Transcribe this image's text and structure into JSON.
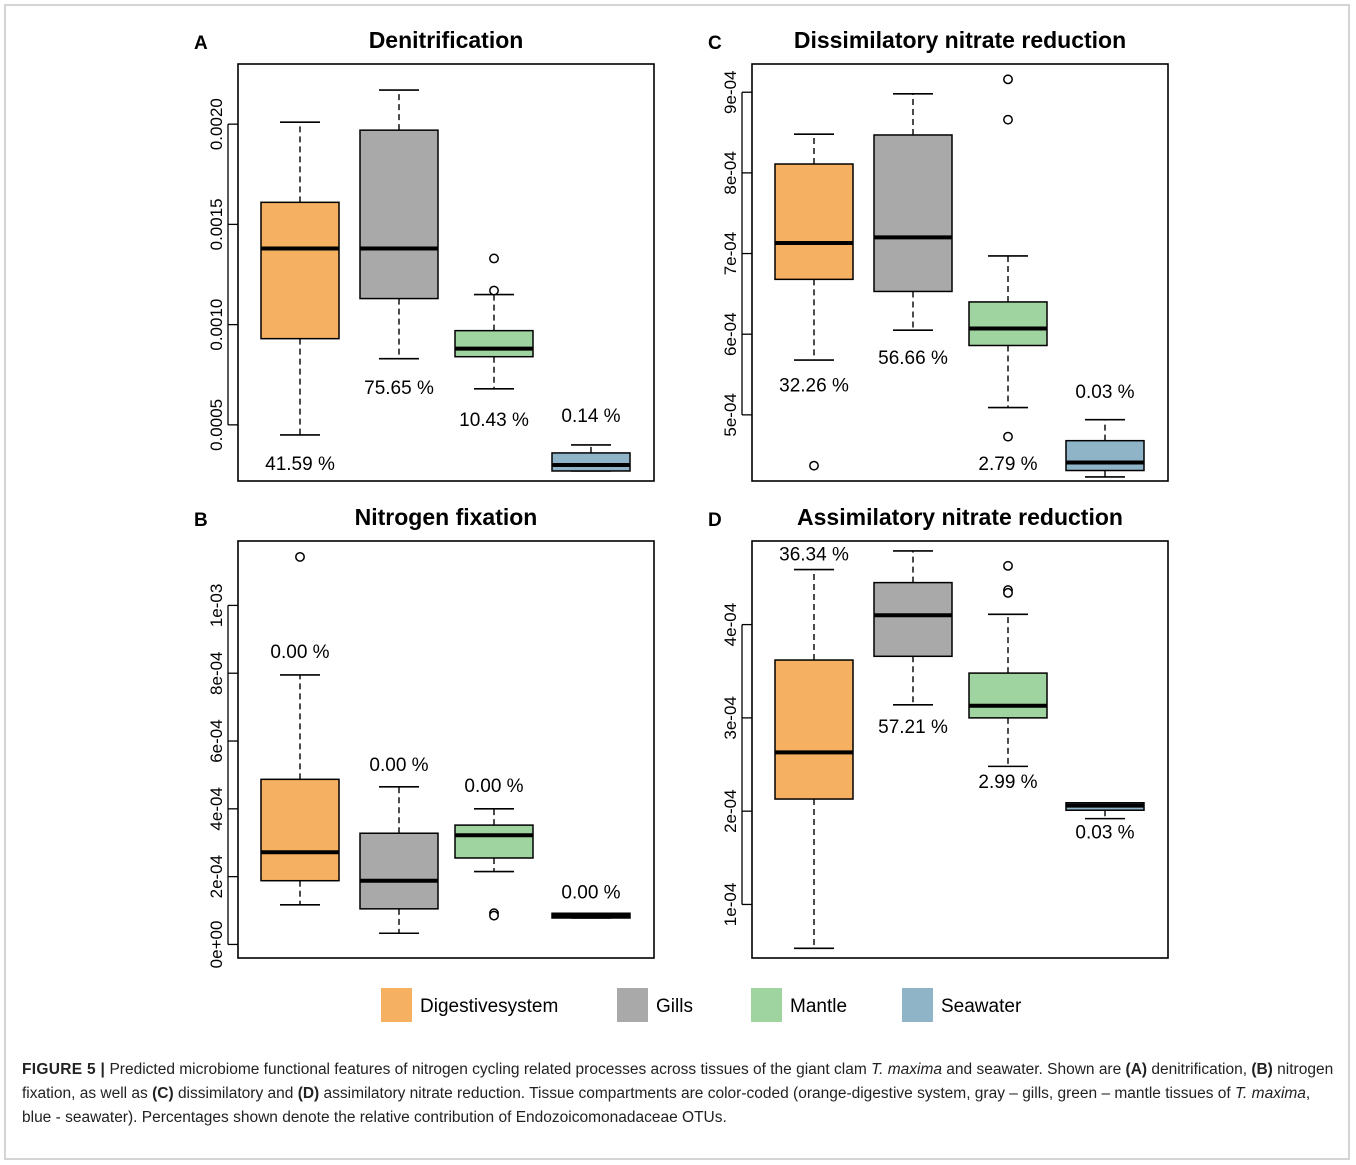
{
  "figure": {
    "caption": {
      "figure_label": "FIGURE 5 |",
      "t1": "Predicted microbiome functional features of nitrogen cycling related processes across tissues of the giant clam",
      "species1": "T. maxima",
      "t2": "and seawater. Shown are",
      "refA": "(A)",
      "t3": "denitrification,",
      "refB": "(B)",
      "t4": "nitrogen fixation, as well as",
      "refC": "(C)",
      "t5": "dissimilatory and",
      "refD": "(D)",
      "t6": "assimilatory nitrate reduction. Tissue compartments are color-coded (orange-digestive system, gray – gills, green – mantle tissues of",
      "species2": "T. maxima",
      "t7": ", blue - seawater). Percentages shown denote the relative contribution of Endozoicomonadaceae OTUs."
    },
    "legend": [
      {
        "label": "Digestivesystem",
        "color": "#F5B061"
      },
      {
        "label": "Gills",
        "color": "#A9A9A9"
      },
      {
        "label": "Mantle",
        "color": "#9FD39F"
      },
      {
        "label": "Seawater",
        "color": "#8FB4C8"
      }
    ]
  },
  "chart_data": [
    {
      "type": "boxplot",
      "panel": "A",
      "title": "Denitrification",
      "ylim": [
        0.00022,
        0.0023
      ],
      "yticks": [
        {
          "value": 0.0005,
          "label": "0.0005"
        },
        {
          "value": 0.001,
          "label": "0.0010"
        },
        {
          "value": 0.0015,
          "label": "0.0015"
        },
        {
          "value": 0.002,
          "label": "0.0020"
        }
      ],
      "boxes": [
        {
          "group": "Digestivesystem",
          "color": "#F5B061",
          "whisker_low": 0.00045,
          "q1": 0.00093,
          "median": 0.00138,
          "q3": 0.00161,
          "whisker_high": 0.00201,
          "outliers": [],
          "pct_label": "41.59 %",
          "pct_y": 0.0003
        },
        {
          "group": "Gills",
          "color": "#A9A9A9",
          "whisker_low": 0.00083,
          "q1": 0.00113,
          "median": 0.00138,
          "q3": 0.00197,
          "whisker_high": 0.00217,
          "outliers": [],
          "pct_label": "75.65 %",
          "pct_y": 0.00068
        },
        {
          "group": "Mantle",
          "color": "#9FD39F",
          "whisker_low": 0.00068,
          "q1": 0.00084,
          "median": 0.00088,
          "q3": 0.00097,
          "whisker_high": 0.00115,
          "outliers": [
            0.00133,
            0.00117
          ],
          "pct_label": "10.43 %",
          "pct_y": 0.00052
        },
        {
          "group": "Seawater",
          "color": "#8FB4C8",
          "whisker_low": 0.00027,
          "q1": 0.00027,
          "median": 0.0003,
          "q3": 0.00036,
          "whisker_high": 0.0004,
          "outliers": [],
          "pct_label": "0.14 %",
          "pct_y": 0.00054
        }
      ]
    },
    {
      "type": "boxplot",
      "panel": "C",
      "title": "Dissimilatory nitrate reduction",
      "ylim": [
        0.000418,
        0.000935
      ],
      "yticks": [
        {
          "value": 0.0005,
          "label": "5e-04"
        },
        {
          "value": 0.0006,
          "label": "6e-04"
        },
        {
          "value": 0.0007,
          "label": "7e-04"
        },
        {
          "value": 0.0008,
          "label": "8e-04"
        },
        {
          "value": 0.0009,
          "label": "9e-04"
        }
      ],
      "boxes": [
        {
          "group": "Digestivesystem",
          "color": "#F5B061",
          "whisker_low": 0.000568,
          "q1": 0.000668,
          "median": 0.000713,
          "q3": 0.000811,
          "whisker_high": 0.000848,
          "outliers": [
            0.000437
          ],
          "pct_label": "32.26 %",
          "pct_y": 0.000535
        },
        {
          "group": "Gills",
          "color": "#A9A9A9",
          "whisker_low": 0.000605,
          "q1": 0.000653,
          "median": 0.00072,
          "q3": 0.000847,
          "whisker_high": 0.000898,
          "outliers": [],
          "pct_label": "56.66 %",
          "pct_y": 0.000569
        },
        {
          "group": "Mantle",
          "color": "#9FD39F",
          "whisker_low": 0.000509,
          "q1": 0.000586,
          "median": 0.000607,
          "q3": 0.00064,
          "whisker_high": 0.000697,
          "outliers": [
            0.000916,
            0.000866,
            0.000473
          ],
          "pct_label": "2.79 %",
          "pct_y": 0.000438
        },
        {
          "group": "Seawater",
          "color": "#8FB4C8",
          "whisker_low": 0.000423,
          "q1": 0.000431,
          "median": 0.000441,
          "q3": 0.000468,
          "whisker_high": 0.000494,
          "outliers": [],
          "pct_label": "0.03 %",
          "pct_y": 0.000527
        }
      ]
    },
    {
      "type": "boxplot",
      "panel": "B",
      "title": "Nitrogen fixation",
      "ylim": [
        -4e-05,
        0.00119
      ],
      "yticks": [
        {
          "value": 0,
          "label": "0e+00"
        },
        {
          "value": 0.0002,
          "label": "2e-04"
        },
        {
          "value": 0.0004,
          "label": "4e-04"
        },
        {
          "value": 0.0006,
          "label": "6e-04"
        },
        {
          "value": 0.0008,
          "label": "8e-04"
        },
        {
          "value": 0.001,
          "label": "1e-03"
        }
      ],
      "boxes": [
        {
          "group": "Digestivesystem",
          "color": "#F5B061",
          "whisker_low": 0.000117,
          "q1": 0.000188,
          "median": 0.000272,
          "q3": 0.000487,
          "whisker_high": 0.000795,
          "outliers": [
            0.001143
          ],
          "pct_label": "0.00 %",
          "pct_y": 0.00086
        },
        {
          "group": "Gills",
          "color": "#A9A9A9",
          "whisker_low": 3.3e-05,
          "q1": 0.000105,
          "median": 0.000188,
          "q3": 0.000328,
          "whisker_high": 0.000465,
          "outliers": [],
          "pct_label": "0.00 %",
          "pct_y": 0.000527
        },
        {
          "group": "Mantle",
          "color": "#9FD39F",
          "whisker_low": 0.000215,
          "q1": 0.000255,
          "median": 0.000322,
          "q3": 0.000352,
          "whisker_high": 0.0004,
          "outliers": [
            9.2e-05,
            8.5e-05
          ],
          "pct_label": "0.00 %",
          "pct_y": 0.000465
        },
        {
          "group": "Seawater",
          "color": "#8FB4C8",
          "whisker_low": 7.8e-05,
          "q1": 7.8e-05,
          "median": 8.5e-05,
          "q3": 9.2e-05,
          "whisker_high": 9.2e-05,
          "outliers": [],
          "pct_label": "0.00 %",
          "pct_y": 0.00015
        }
      ]
    },
    {
      "type": "boxplot",
      "panel": "D",
      "title": "Assimilatory nitrate reduction",
      "ylim": [
        4.26e-05,
        0.0004896
      ],
      "yticks": [
        {
          "value": 0.0001,
          "label": "1e-04"
        },
        {
          "value": 0.0002,
          "label": "2e-04"
        },
        {
          "value": 0.0003,
          "label": "3e-04"
        },
        {
          "value": 0.0004,
          "label": "4e-04"
        }
      ],
      "boxes": [
        {
          "group": "Digestivesystem",
          "color": "#F5B061",
          "whisker_low": 5.3e-05,
          "q1": 0.000213,
          "median": 0.000263,
          "q3": 0.000362,
          "whisker_high": 0.000459,
          "outliers": [],
          "pct_label": "36.34 %",
          "pct_y": 0.000474
        },
        {
          "group": "Gills",
          "color": "#A9A9A9",
          "whisker_low": 0.000314,
          "q1": 0.000366,
          "median": 0.00041,
          "q3": 0.000445,
          "whisker_high": 0.000479,
          "outliers": [],
          "pct_label": "57.21 %",
          "pct_y": 0.000289
        },
        {
          "group": "Mantle",
          "color": "#9FD39F",
          "whisker_low": 0.000248,
          "q1": 0.0003,
          "median": 0.000313,
          "q3": 0.000348,
          "whisker_high": 0.000411,
          "outliers": [
            0.000463,
            0.000437,
            0.000434
          ],
          "pct_label": "2.99 %",
          "pct_y": 0.00023
        },
        {
          "group": "Seawater",
          "color": "#8FB4C8",
          "whisker_low": 0.000192,
          "q1": 0.000201,
          "median": 0.000206,
          "q3": 0.000209,
          "whisker_high": 0.000209,
          "outliers": [],
          "pct_label": "0.03 %",
          "pct_y": 0.000176
        }
      ]
    }
  ]
}
